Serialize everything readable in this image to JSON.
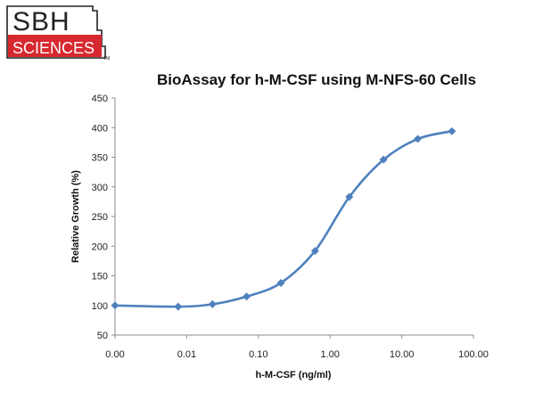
{
  "logo": {
    "line1": "SBH",
    "line2": "SCIENCES",
    "trademark": "TM",
    "colors": {
      "red": "#d7282f",
      "dark": "#222222",
      "white": "#ffffff"
    }
  },
  "chart_data": {
    "type": "line",
    "title": "BioAssay for h-M-CSF using M-NFS-60 Cells",
    "xlabel": "h-M-CSF (ng/ml)",
    "ylabel": "Relative Growth (%)",
    "x_scale": "log",
    "x_ticks": [
      0.001,
      0.01,
      0.1,
      1,
      10,
      100
    ],
    "x_tick_labels": [
      "0.00",
      "0.01",
      "0.10",
      "1.00",
      "10.00",
      "100.00"
    ],
    "xlim": [
      0.001,
      100
    ],
    "ylim": [
      50,
      450
    ],
    "y_ticks": [
      50,
      100,
      150,
      200,
      250,
      300,
      350,
      400,
      450
    ],
    "y_tick_labels": [
      "50",
      "100",
      "150",
      "200",
      "250",
      "300",
      "350",
      "400",
      "450"
    ],
    "grid": false,
    "legend": "none",
    "line_color": "#4f81bd",
    "series": [
      {
        "x": [
          0.001,
          0.0076,
          0.0229,
          0.0686,
          0.206,
          0.617,
          1.85,
          5.56,
          16.7,
          50
        ],
        "y": [
          100,
          98,
          102,
          115,
          138,
          192,
          283,
          346,
          381,
          394
        ]
      }
    ]
  }
}
